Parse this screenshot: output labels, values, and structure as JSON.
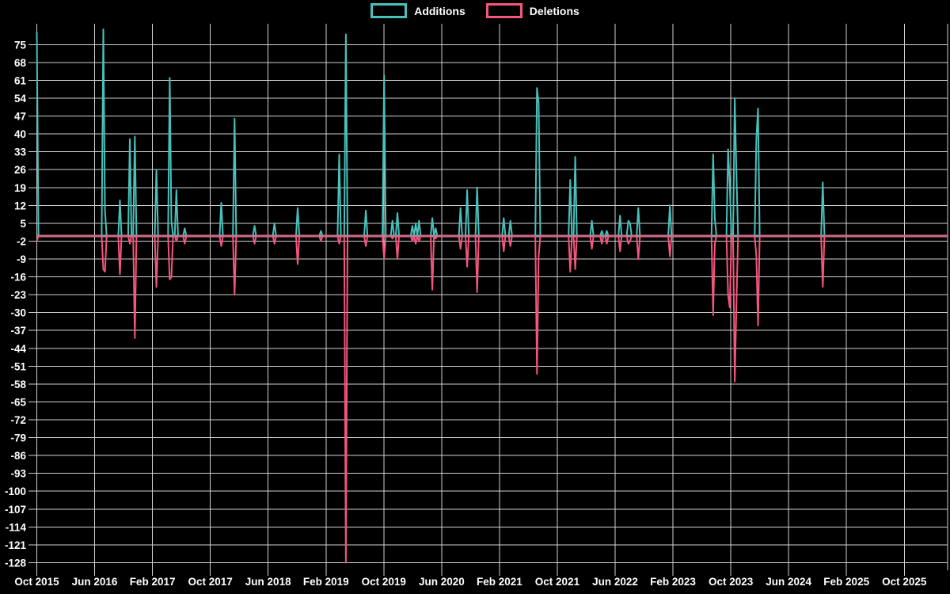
{
  "chart_data": {
    "type": "line",
    "title": "",
    "description": "Weekly code additions and deletions over time (code-frequency style chart), black background, white grid",
    "legend": [
      {
        "label": "Additions",
        "color": "#49C0BB"
      },
      {
        "label": "Deletions",
        "color": "#F5567E"
      }
    ],
    "colors": {
      "additions": "#49C0BB",
      "deletions": "#F5567E",
      "grid": "#E8E8E8",
      "zero_line": "#87A3AB",
      "background": "#000000",
      "text": "#FFFFFF"
    },
    "x_tick_labels": [
      "Oct 2015",
      "Jun 2016",
      "Feb 2017",
      "Oct 2017",
      "Jun 2018",
      "Feb 2019",
      "Oct 2019",
      "Jun 2020",
      "Feb 2021",
      "Oct 2021",
      "Jun 2022",
      "Feb 2023",
      "Oct 2023",
      "Jun 2024",
      "Feb 2025",
      "Oct 2025"
    ],
    "y_ticks": [
      75,
      68,
      61,
      54,
      47,
      40,
      33,
      26,
      19,
      12,
      5,
      -2,
      -9,
      -16,
      -23,
      -30,
      -37,
      -44,
      -51,
      -58,
      -65,
      -72,
      -79,
      -86,
      -93,
      -100,
      -107,
      -114,
      -121,
      -128
    ],
    "y_axis_range": [
      -131,
      83
    ],
    "x_unit": "week",
    "total_weeks": 548,
    "baseline_value": 0,
    "grid": true,
    "legend_position": "top-center",
    "spikes": [
      {
        "week": 0,
        "date": "Oct 2015",
        "additions": 80,
        "deletions": -2
      },
      {
        "week": 40,
        "date": "Jul 2016",
        "additions": 81,
        "deletions": -13
      },
      {
        "week": 41,
        "date": "Jul 2016",
        "additions": 10,
        "deletions": -14
      },
      {
        "week": 50,
        "date": "Sep 2016",
        "additions": 14,
        "deletions": -15
      },
      {
        "week": 56,
        "date": "Nov 2016",
        "additions": 38,
        "deletions": -3
      },
      {
        "week": 59,
        "date": "Dec 2016",
        "additions": 39,
        "deletions": -40
      },
      {
        "week": 72,
        "date": "Feb 2017",
        "additions": 26,
        "deletions": -20
      },
      {
        "week": 80,
        "date": "Apr 2017",
        "additions": 62,
        "deletions": -17
      },
      {
        "week": 81,
        "date": "Apr 2017",
        "additions": 6,
        "deletions": -16
      },
      {
        "week": 84,
        "date": "May 2017",
        "additions": 18,
        "deletions": -2
      },
      {
        "week": 89,
        "date": "Jun 2017",
        "additions": 3,
        "deletions": -3
      },
      {
        "week": 111,
        "date": "Nov 2017",
        "additions": 13,
        "deletions": -4
      },
      {
        "week": 119,
        "date": "Jan 2018",
        "additions": 46,
        "deletions": -23
      },
      {
        "week": 131,
        "date": "Mar 2018",
        "additions": 4,
        "deletions": -3
      },
      {
        "week": 143,
        "date": "Jun 2018",
        "additions": 5,
        "deletions": -3
      },
      {
        "week": 157,
        "date": "Sep 2018",
        "additions": 11,
        "deletions": -11
      },
      {
        "week": 171,
        "date": "Dec 2018",
        "additions": 2,
        "deletions": -2
      },
      {
        "week": 182,
        "date": "Mar 2019",
        "additions": 32,
        "deletions": -3
      },
      {
        "week": 186,
        "date": "Apr 2019",
        "additions": 79,
        "deletions": -128
      },
      {
        "week": 198,
        "date": "Jun 2019",
        "additions": 10,
        "deletions": -4
      },
      {
        "week": 209,
        "date": "Sep 2019",
        "additions": 63,
        "deletions": -9
      },
      {
        "week": 214,
        "date": "Oct 2019",
        "additions": 6,
        "deletions": -1
      },
      {
        "week": 217,
        "date": "Nov 2019",
        "additions": 9,
        "deletions": -9
      },
      {
        "week": 226,
        "date": "Jan 2020",
        "additions": 4,
        "deletions": -2
      },
      {
        "week": 228,
        "date": "Feb 2020",
        "additions": 5,
        "deletions": -3
      },
      {
        "week": 230,
        "date": "Feb 2020",
        "additions": 6,
        "deletions": -2
      },
      {
        "week": 238,
        "date": "Apr 2020",
        "additions": 7,
        "deletions": -21
      },
      {
        "week": 240,
        "date": "Apr 2020",
        "additions": 3,
        "deletions": -1
      },
      {
        "week": 255,
        "date": "Aug 2020",
        "additions": 11,
        "deletions": -5
      },
      {
        "week": 259,
        "date": "Sep 2020",
        "additions": 18,
        "deletions": -12
      },
      {
        "week": 265,
        "date": "Oct 2020",
        "additions": 19,
        "deletions": -22
      },
      {
        "week": 281,
        "date": "Feb 2021",
        "additions": 7,
        "deletions": -6
      },
      {
        "week": 285,
        "date": "Mar 2021",
        "additions": 6,
        "deletions": -4
      },
      {
        "week": 301,
        "date": "Jul 2021",
        "additions": 58,
        "deletions": -54
      },
      {
        "week": 302,
        "date": "Jul 2021",
        "additions": 52,
        "deletions": -8
      },
      {
        "week": 321,
        "date": "Nov 2021",
        "additions": 22,
        "deletions": -14
      },
      {
        "week": 324,
        "date": "Dec 2021",
        "additions": 31,
        "deletions": -13
      },
      {
        "week": 334,
        "date": "Feb 2022",
        "additions": 6,
        "deletions": -5
      },
      {
        "week": 340,
        "date": "Apr 2022",
        "additions": 2,
        "deletions": -3
      },
      {
        "week": 343,
        "date": "Apr 2022",
        "additions": 2,
        "deletions": -3
      },
      {
        "week": 351,
        "date": "Jun 2022",
        "additions": 8,
        "deletions": -6
      },
      {
        "week": 356,
        "date": "Jul 2022",
        "additions": 6,
        "deletions": -3
      },
      {
        "week": 357,
        "date": "Jul 2022",
        "additions": 5,
        "deletions": -2
      },
      {
        "week": 362,
        "date": "Sep 2022",
        "additions": 11,
        "deletions": -9
      },
      {
        "week": 381,
        "date": "Jan 2023",
        "additions": 12,
        "deletions": -8
      },
      {
        "week": 407,
        "date": "Jul 2023",
        "additions": 32,
        "deletions": -31
      },
      {
        "week": 408,
        "date": "Jul 2023",
        "additions": 7,
        "deletions": -3
      },
      {
        "week": 416,
        "date": "Sep 2023",
        "additions": 34,
        "deletions": -23
      },
      {
        "week": 417,
        "date": "Sep 2023",
        "additions": 20,
        "deletions": -28
      },
      {
        "week": 420,
        "date": "Oct 2023",
        "additions": 54,
        "deletions": -57
      },
      {
        "week": 421,
        "date": "Oct 2023",
        "additions": 25,
        "deletions": -27
      },
      {
        "week": 433,
        "date": "Dec 2023",
        "additions": 38,
        "deletions": -8
      },
      {
        "week": 434,
        "date": "Dec 2023",
        "additions": 50,
        "deletions": -35
      },
      {
        "week": 473,
        "date": "Nov 2024",
        "additions": 21,
        "deletions": -20
      }
    ]
  }
}
